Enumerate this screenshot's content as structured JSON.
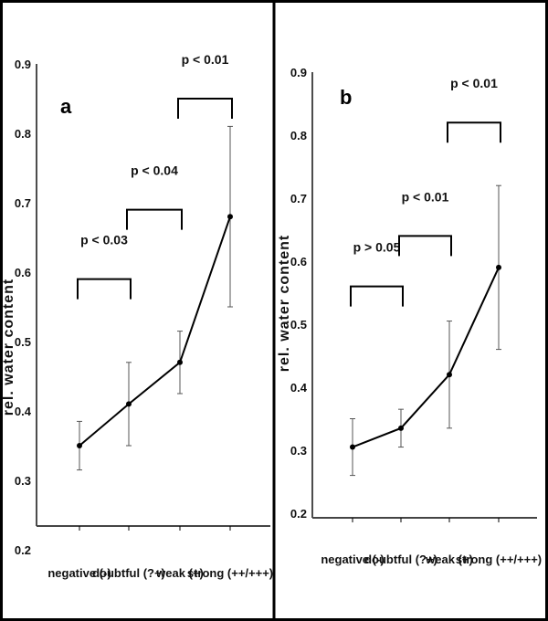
{
  "chart_data": [
    {
      "type": "line",
      "panel": "a",
      "ylabel": "rel. water content",
      "categories": [
        "negative (-)",
        "doubtful (?+)",
        "weak (+)",
        "strong (++/+++)"
      ],
      "ylim": [
        0.2,
        0.9
      ],
      "yticks": [
        "0.2",
        "0.3",
        "0.4",
        "0.5",
        "0.6",
        "0.7",
        "0.8",
        "0.9"
      ],
      "values": [
        0.35,
        0.41,
        0.47,
        0.68
      ],
      "errors": [
        0.035,
        0.06,
        0.045,
        0.13
      ],
      "comparisons": [
        {
          "from": 0,
          "to": 1,
          "label": "p < 0.03",
          "y": 0.59
        },
        {
          "from": 1,
          "to": 2,
          "label": "p < 0.04",
          "y": 0.69
        },
        {
          "from": 2,
          "to": 3,
          "label": "p < 0.01",
          "y": 0.85
        }
      ]
    },
    {
      "type": "line",
      "panel": "b",
      "ylabel": "rel. water content",
      "categories": [
        "negative (-)",
        "doubtful (?+)",
        "weak (+)",
        "strong (++/+++)"
      ],
      "ylim": [
        0.2,
        0.9
      ],
      "yticks": [
        "0.2",
        "0.3",
        "0.4",
        "0.5",
        "0.6",
        "0.7",
        "0.8",
        "0.9"
      ],
      "values": [
        0.305,
        0.335,
        0.42,
        0.59
      ],
      "errors": [
        0.045,
        0.03,
        0.085,
        0.13
      ],
      "comparisons": [
        {
          "from": 0,
          "to": 1,
          "label": "p > 0.05",
          "y": 0.56
        },
        {
          "from": 1,
          "to": 2,
          "label": "p < 0.01",
          "y": 0.64
        },
        {
          "from": 2,
          "to": 3,
          "label": "p < 0.01",
          "y": 0.82
        }
      ]
    }
  ]
}
